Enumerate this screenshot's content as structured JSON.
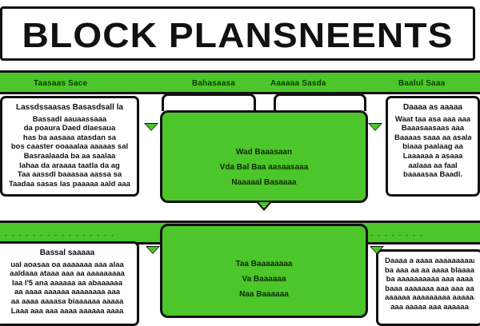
{
  "title": "BLOCK PLANSNEENTS",
  "band_top": {
    "labels": [
      "Taasaas Sace",
      "Bahasaasa",
      "Aaaaaa Sasda",
      "Baalul Saaa"
    ],
    "bullets": "-  -  -"
  },
  "band_bottom": {
    "bullets": "- - - - - - - - - - - - - - - -"
  },
  "card_top_left": {
    "title": "Lassdssaasas  Basasdsall  la",
    "lines": [
      "Bassadl aauaassaaa",
      "da poaura Daed dlaesaua",
      "has ba aasaaa atasdan sa",
      "bos caaster ooaaalaa aaaaas sal",
      "Basraalaada ba aa saalaa",
      "lahaa da araaaa taatla da ag",
      "Taa aassdl baaasaa aassa sa",
      "Taadaa sasas las paaaaa aald aaaald"
    ]
  },
  "card_top_right": {
    "title": "Daaaa as aaaaa",
    "lines": [
      "Waat taa asa aaa aaa",
      "Baaasaasaas aaa",
      "Baaaas saaa aa asalaa",
      "biaaa paalaag aa",
      "Laaaaaa a asaaa",
      "aalaaa aa faal",
      "baaaasaa Baadl."
    ]
  },
  "center_top": {
    "lines": [
      "Wad Baaasaan",
      "Vda Bal Baa aasaasaaa",
      "Naaaaal Basaaaa"
    ]
  },
  "card_bottom_left": {
    "title": "Bassal saaaaa",
    "lines": [
      "ual aoasaa oa aaaaaaa aaa alaa",
      "aaldaaa ataaa aaa aa aaaaaaaaa",
      "laa l'5 ana aaaaaa aa abaaaaaa",
      "aa aaaa aaaaaa aaaaaaaa aaa",
      "aa aaaa aaaasa biaaaaaa aaaaa",
      "Laaa aaa aaa aaaa aaaaaa aaaa"
    ]
  },
  "card_bottom_right": {
    "lines": [
      "Daaaa a aaaa aaaaaaaaaa",
      "ba aaa aa aa aaaa blaaaaaa",
      "ba aaaaaaaaaa aaa aaaa",
      "baaa aaaaaaa aaa aaa aa",
      "aaaaaa aaaaaaaaa aaaaaaaa",
      "aaa aaaaa aaa aaaaaa"
    ]
  },
  "center_bottom": {
    "lines": [
      "Taa Baaaaaaaa",
      "Va Baaaaaa",
      "Naa Baaaaaa"
    ]
  }
}
